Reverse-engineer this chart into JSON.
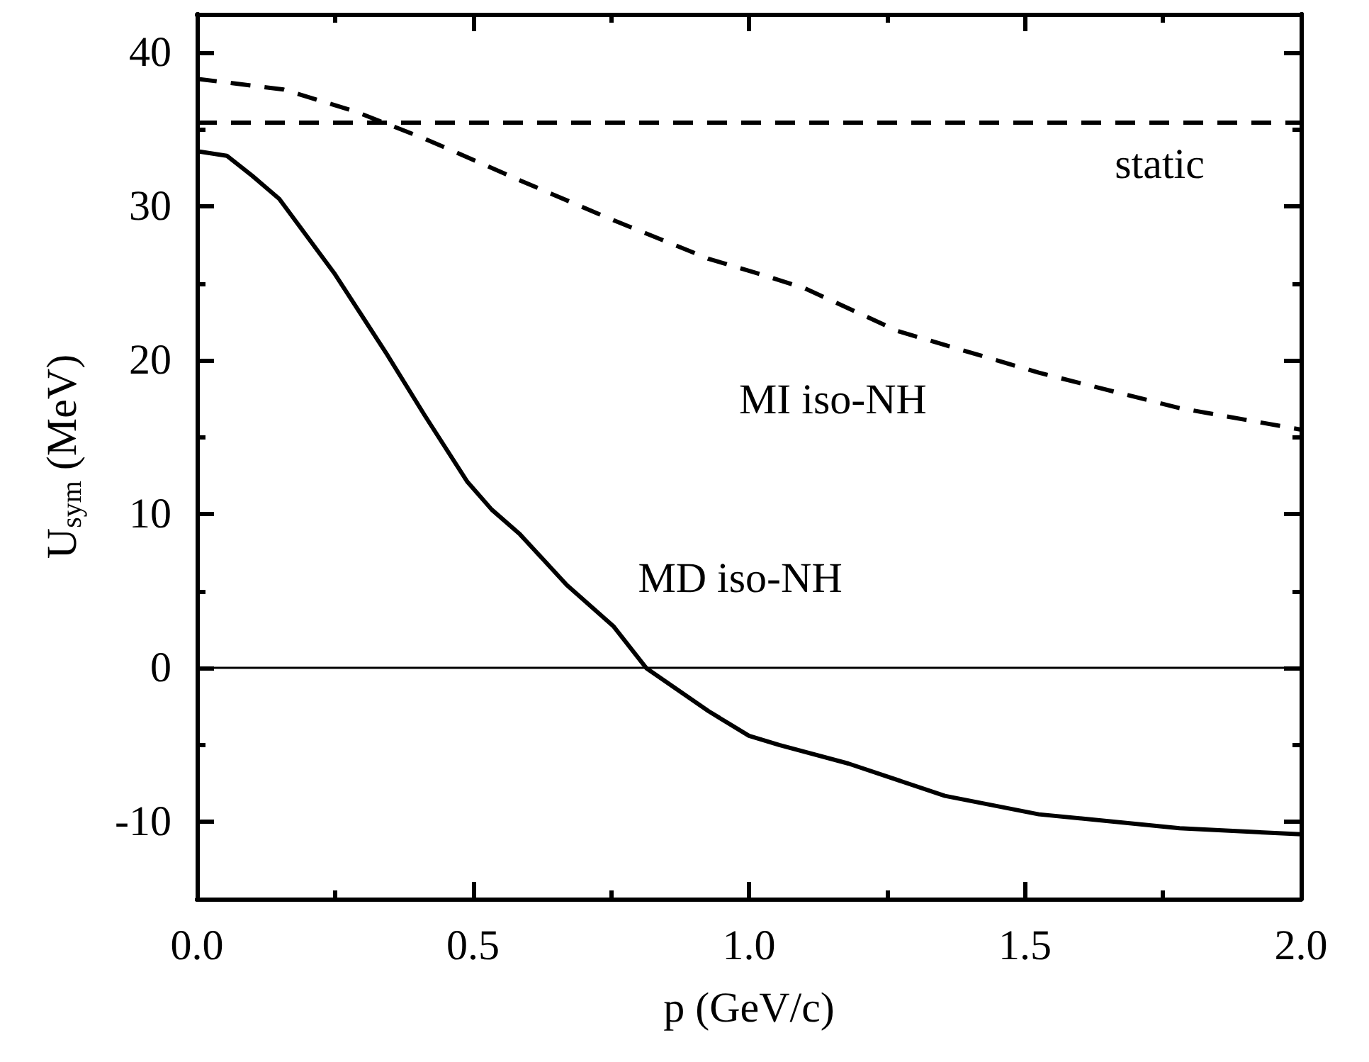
{
  "chart_data": {
    "type": "line",
    "xlabel": "p (GeV/c)",
    "ylabel": "U$_{sym}$ (MeV)",
    "xlim": [
      0,
      2
    ],
    "ylim": [
      -15,
      42.5
    ],
    "xticks": [
      {
        "value": 0,
        "label": "0.0"
      },
      {
        "value": 0.25,
        "label": null
      },
      0.5,
      {
        "value": 0.75,
        "label": null
      },
      {
        "value": 1,
        "label": "1.0"
      },
      {
        "value": 1.25,
        "label": null
      },
      1.5,
      {
        "value": 1.75,
        "label": null
      },
      {
        "value": 2,
        "label": "2.0"
      }
    ],
    "yticks": [
      -10,
      {
        "value": -5,
        "label": null
      },
      0,
      {
        "value": 5,
        "label": null
      },
      10,
      {
        "value": 15,
        "label": null
      },
      20,
      {
        "value": 25,
        "label": null
      },
      30,
      {
        "value": 35,
        "label": null
      },
      40
    ],
    "grid": false,
    "marker": "none",
    "series": [
      {
        "color": "#000000",
        "line_style": "solid",
        "x": [
          0,
          0.054,
          0.1,
          0.149,
          0.25,
          0.344,
          0.413,
          0.49,
          0.534,
          0.585,
          0.67,
          0.755,
          0.814,
          0.927,
          1.0,
          1.055,
          1.18,
          1.355,
          1.525,
          1.78,
          2.0
        ],
        "values": [
          33.6,
          33.3,
          32.0,
          30.5,
          25.6,
          20.4,
          16.4,
          12.1,
          10.3,
          8.7,
          5.4,
          2.7,
          0,
          -2.8,
          -4.4,
          -5.0,
          -6.2,
          -8.3,
          -9.5,
          -10.4,
          -10.8
        ]
      },
      {
        "color": "#000000",
        "line_style": "dashed",
        "x": [
          0,
          0.157,
          0.285,
          0.413,
          0.585,
          0.755,
          0.927,
          1.03,
          1.1,
          1.27,
          1.525,
          1.78,
          2.0
        ],
        "values": [
          38.3,
          37.6,
          36.2,
          34.4,
          31.7,
          29.1,
          26.6,
          25.5,
          24.7,
          21.9,
          19.2,
          16.9,
          15.5
        ]
      }
    ],
    "ref_lines": [
      {
        "axis": "y",
        "value": 35.5,
        "label": null,
        "color": "#000000",
        "line_style": "dashed"
      },
      {
        "axis": "y",
        "value": 0,
        "label": null,
        "color": "#000000",
        "line_style": "solid"
      }
    ],
    "annotations": [
      "static",
      "MI iso-NH",
      "MD iso-NH"
    ]
  }
}
